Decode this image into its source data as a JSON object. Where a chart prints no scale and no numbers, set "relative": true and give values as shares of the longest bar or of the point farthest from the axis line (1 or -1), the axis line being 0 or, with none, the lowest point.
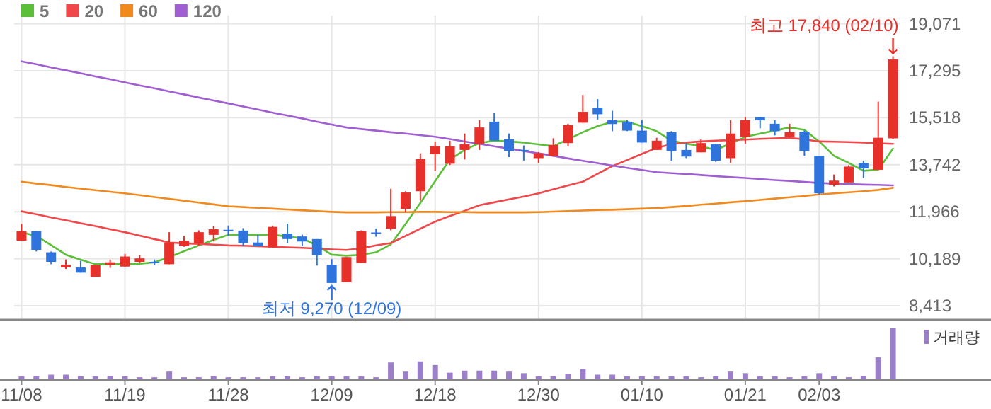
{
  "chart_data": [
    {
      "type": "candlestick",
      "categories": [
        "11/08",
        null,
        null,
        null,
        null,
        null,
        null,
        "11/19",
        null,
        null,
        null,
        null,
        null,
        null,
        "11/28",
        null,
        null,
        null,
        null,
        null,
        null,
        "12/09",
        null,
        null,
        null,
        null,
        null,
        null,
        "12/18",
        null,
        null,
        null,
        null,
        null,
        null,
        "12/30",
        null,
        null,
        null,
        null,
        null,
        null,
        "01/10",
        null,
        null,
        null,
        null,
        null,
        null,
        "01/21",
        null,
        null,
        null,
        null,
        "02/03",
        null,
        null,
        null,
        null,
        null
      ],
      "ohlc": [
        [
          10870,
          11500,
          10870,
          11230
        ],
        [
          11230,
          11230,
          10460,
          10520
        ],
        [
          10430,
          10460,
          9980,
          10070
        ],
        [
          9860,
          10160,
          9800,
          9960
        ],
        [
          9860,
          10110,
          9660,
          9660
        ],
        [
          9500,
          9950,
          9500,
          9950
        ],
        [
          9960,
          10160,
          9840,
          10050
        ],
        [
          9890,
          10370,
          9890,
          10270
        ],
        [
          10070,
          10320,
          10020,
          10200
        ],
        [
          10070,
          10160,
          9950,
          10030
        ],
        [
          9980,
          11190,
          9980,
          10800
        ],
        [
          10660,
          11050,
          10640,
          10870
        ],
        [
          10780,
          11260,
          10660,
          11190
        ],
        [
          11090,
          11410,
          10840,
          11300
        ],
        [
          11280,
          11440,
          11050,
          11250
        ],
        [
          11250,
          11340,
          10660,
          10780
        ],
        [
          10800,
          11090,
          10660,
          10660
        ],
        [
          10620,
          11440,
          10620,
          11390
        ],
        [
          11140,
          11510,
          10780,
          10930
        ],
        [
          11030,
          11100,
          10660,
          10840
        ],
        [
          10930,
          10930,
          9930,
          10320
        ],
        [
          9960,
          10180,
          9270,
          9270
        ],
        [
          9300,
          10250,
          9300,
          10250
        ],
        [
          10030,
          11260,
          10030,
          11230
        ],
        [
          11180,
          11320,
          11020,
          11140
        ],
        [
          11320,
          12830,
          11260,
          11800
        ],
        [
          12070,
          12740,
          11940,
          12690
        ],
        [
          12740,
          14170,
          12390,
          13960
        ],
        [
          14140,
          14620,
          13510,
          14440
        ],
        [
          13780,
          14650,
          13730,
          14440
        ],
        [
          14300,
          14920,
          13940,
          14510
        ],
        [
          14530,
          15420,
          14300,
          15150
        ],
        [
          15370,
          15690,
          14650,
          14650
        ],
        [
          14710,
          14920,
          14030,
          14260
        ],
        [
          14300,
          14470,
          13900,
          14260
        ],
        [
          13990,
          14220,
          13810,
          14170
        ],
        [
          14080,
          14740,
          14050,
          14490
        ],
        [
          14560,
          15290,
          14440,
          15240
        ],
        [
          15330,
          16380,
          15330,
          15740
        ],
        [
          15900,
          16220,
          15450,
          15650
        ],
        [
          15420,
          15780,
          15010,
          15280
        ],
        [
          15370,
          15420,
          15010,
          15030
        ],
        [
          15030,
          15420,
          14580,
          14580
        ],
        [
          14300,
          14760,
          14300,
          14650
        ],
        [
          14970,
          15010,
          13890,
          14260
        ],
        [
          14300,
          14560,
          13990,
          14050
        ],
        [
          14210,
          14700,
          14210,
          14560
        ],
        [
          14510,
          14530,
          13850,
          13890
        ],
        [
          13990,
          15420,
          13810,
          14920
        ],
        [
          14790,
          15540,
          14530,
          15420
        ],
        [
          15540,
          15540,
          15120,
          15420
        ],
        [
          15290,
          15420,
          14850,
          15010
        ],
        [
          14790,
          15290,
          14790,
          14970
        ],
        [
          14990,
          15030,
          14080,
          14260
        ],
        [
          14080,
          14080,
          12620,
          12660
        ],
        [
          12980,
          13370,
          12920,
          13140
        ],
        [
          13070,
          13720,
          13070,
          13670
        ],
        [
          13810,
          13900,
          13230,
          13600
        ],
        [
          13550,
          16130,
          13550,
          14760
        ],
        [
          14740,
          17840,
          14710,
          17720
        ]
      ],
      "series": [
        {
          "name": "5",
          "type": "line",
          "color": "#5cbf3a",
          "values": [
            11190,
            11050,
            10700,
            10340,
            10150,
            9980,
            9980,
            9980,
            10000,
            10050,
            10250,
            10470,
            10690,
            10900,
            11090,
            11090,
            11090,
            11090,
            11030,
            10960,
            10690,
            10340,
            10300,
            10340,
            10430,
            10730,
            11500,
            12300,
            13120,
            13940,
            14300,
            14560,
            14650,
            14620,
            14580,
            14510,
            14440,
            14700,
            14970,
            15200,
            15370,
            15370,
            15200,
            15010,
            14650,
            14540,
            14440,
            14300,
            14550,
            14790,
            14920,
            15030,
            15150,
            15060,
            14620,
            14080,
            13810,
            13510,
            13550,
            14350
          ]
        },
        {
          "name": "20",
          "type": "line",
          "color": "#f0484a",
          "values": [
            11980,
            11870,
            11750,
            11640,
            11530,
            11420,
            11300,
            11190,
            11060,
            10930,
            10800,
            10770,
            10750,
            10720,
            10690,
            10680,
            10660,
            10640,
            10620,
            10600,
            10570,
            10540,
            10520,
            10580,
            10690,
            10780,
            11050,
            11320,
            11590,
            11800,
            12000,
            12210,
            12320,
            12430,
            12540,
            12660,
            12810,
            12960,
            13100,
            13400,
            13690,
            13920,
            14150,
            14380,
            14520,
            14580,
            14620,
            14650,
            14670,
            14690,
            14720,
            14740,
            14760,
            14700,
            14620,
            14610,
            14600,
            14580,
            14550,
            14530
          ]
        },
        {
          "name": "60",
          "type": "line",
          "color": "#f08a1e",
          "values": [
            13100,
            13030,
            12970,
            12900,
            12840,
            12780,
            12720,
            12660,
            12590,
            12520,
            12450,
            12380,
            12310,
            12240,
            12170,
            12140,
            12110,
            12080,
            12050,
            12020,
            11990,
            11960,
            11940,
            11940,
            11940,
            11950,
            11950,
            11960,
            11960,
            11950,
            11950,
            11940,
            11940,
            11940,
            11940,
            11950,
            11970,
            11990,
            12010,
            12030,
            12040,
            12060,
            12080,
            12100,
            12140,
            12180,
            12230,
            12270,
            12320,
            12360,
            12410,
            12460,
            12510,
            12560,
            12620,
            12660,
            12700,
            12740,
            12790,
            12870
          ]
        },
        {
          "name": "120",
          "type": "line",
          "color": "#a05fd0",
          "values": [
            17650,
            17540,
            17420,
            17310,
            17200,
            17080,
            16970,
            16850,
            16740,
            16630,
            16510,
            16400,
            16280,
            16170,
            16060,
            15940,
            15830,
            15710,
            15600,
            15490,
            15370,
            15260,
            15150,
            15090,
            15030,
            14970,
            14920,
            14860,
            14800,
            14710,
            14620,
            14530,
            14440,
            14350,
            14260,
            14170,
            14080,
            13980,
            13890,
            13800,
            13710,
            13620,
            13540,
            13460,
            13420,
            13390,
            13350,
            13310,
            13270,
            13240,
            13200,
            13160,
            13130,
            13090,
            13050,
            13030,
            13010,
            12990,
            12980,
            12960
          ]
        }
      ],
      "ylim": [
        7930,
        19380
      ],
      "yticks": [
        {
          "value": 8413,
          "label": "8,413"
        },
        {
          "value": 10189,
          "label": "10,189"
        },
        {
          "value": 11966,
          "label": "11,966"
        },
        {
          "value": 13742,
          "label": "13,742"
        },
        {
          "value": 15518,
          "label": "15,518"
        },
        {
          "value": 17295,
          "label": "17,295"
        },
        {
          "value": 19071,
          "label": "19,071"
        }
      ],
      "grid": true,
      "legend": "top left",
      "tick_labels": "y",
      "annotations": [
        "최고 17,840 (02/10)",
        {
          "text": "최저 9,270 (12/09)",
          "x": "12/09",
          "y": 9270
        }
      ]
    },
    {
      "type": "bar",
      "relative": true,
      "legend": "top right",
      "categories": [
        "11/08",
        null,
        null,
        null,
        null,
        null,
        null,
        "11/19",
        null,
        null,
        null,
        null,
        null,
        null,
        "11/28",
        null,
        null,
        null,
        null,
        null,
        null,
        "12/09",
        null,
        null,
        null,
        null,
        null,
        null,
        "12/18",
        null,
        null,
        null,
        null,
        null,
        null,
        "12/30",
        null,
        null,
        null,
        null,
        null,
        null,
        "01/10",
        null,
        null,
        null,
        null,
        null,
        null,
        "01/21",
        null,
        null,
        null,
        null,
        "02/03",
        null,
        null,
        null,
        null,
        null
      ],
      "series": [
        {
          "name": "거래량",
          "color": "#9b7fc8",
          "values": [
            0.06,
            0.06,
            0.09,
            0.09,
            0.06,
            0.06,
            0.06,
            0.06,
            0.04,
            0.04,
            0.15,
            0.04,
            0.04,
            0.06,
            0.04,
            0.04,
            0.04,
            0.06,
            0.06,
            0.04,
            0.06,
            0.06,
            0.06,
            0.06,
            0.04,
            0.33,
            0.15,
            0.35,
            0.28,
            0.13,
            0.17,
            0.17,
            0.17,
            0.15,
            0.12,
            0.06,
            0.06,
            0.11,
            0.2,
            0.09,
            0.09,
            0.06,
            0.06,
            0.06,
            0.06,
            0.06,
            0.04,
            0.06,
            0.15,
            0.12,
            0.06,
            0.06,
            0.04,
            0.06,
            0.12,
            0.06,
            0.04,
            0.06,
            0.43,
            1
          ]
        }
      ]
    }
  ]
}
